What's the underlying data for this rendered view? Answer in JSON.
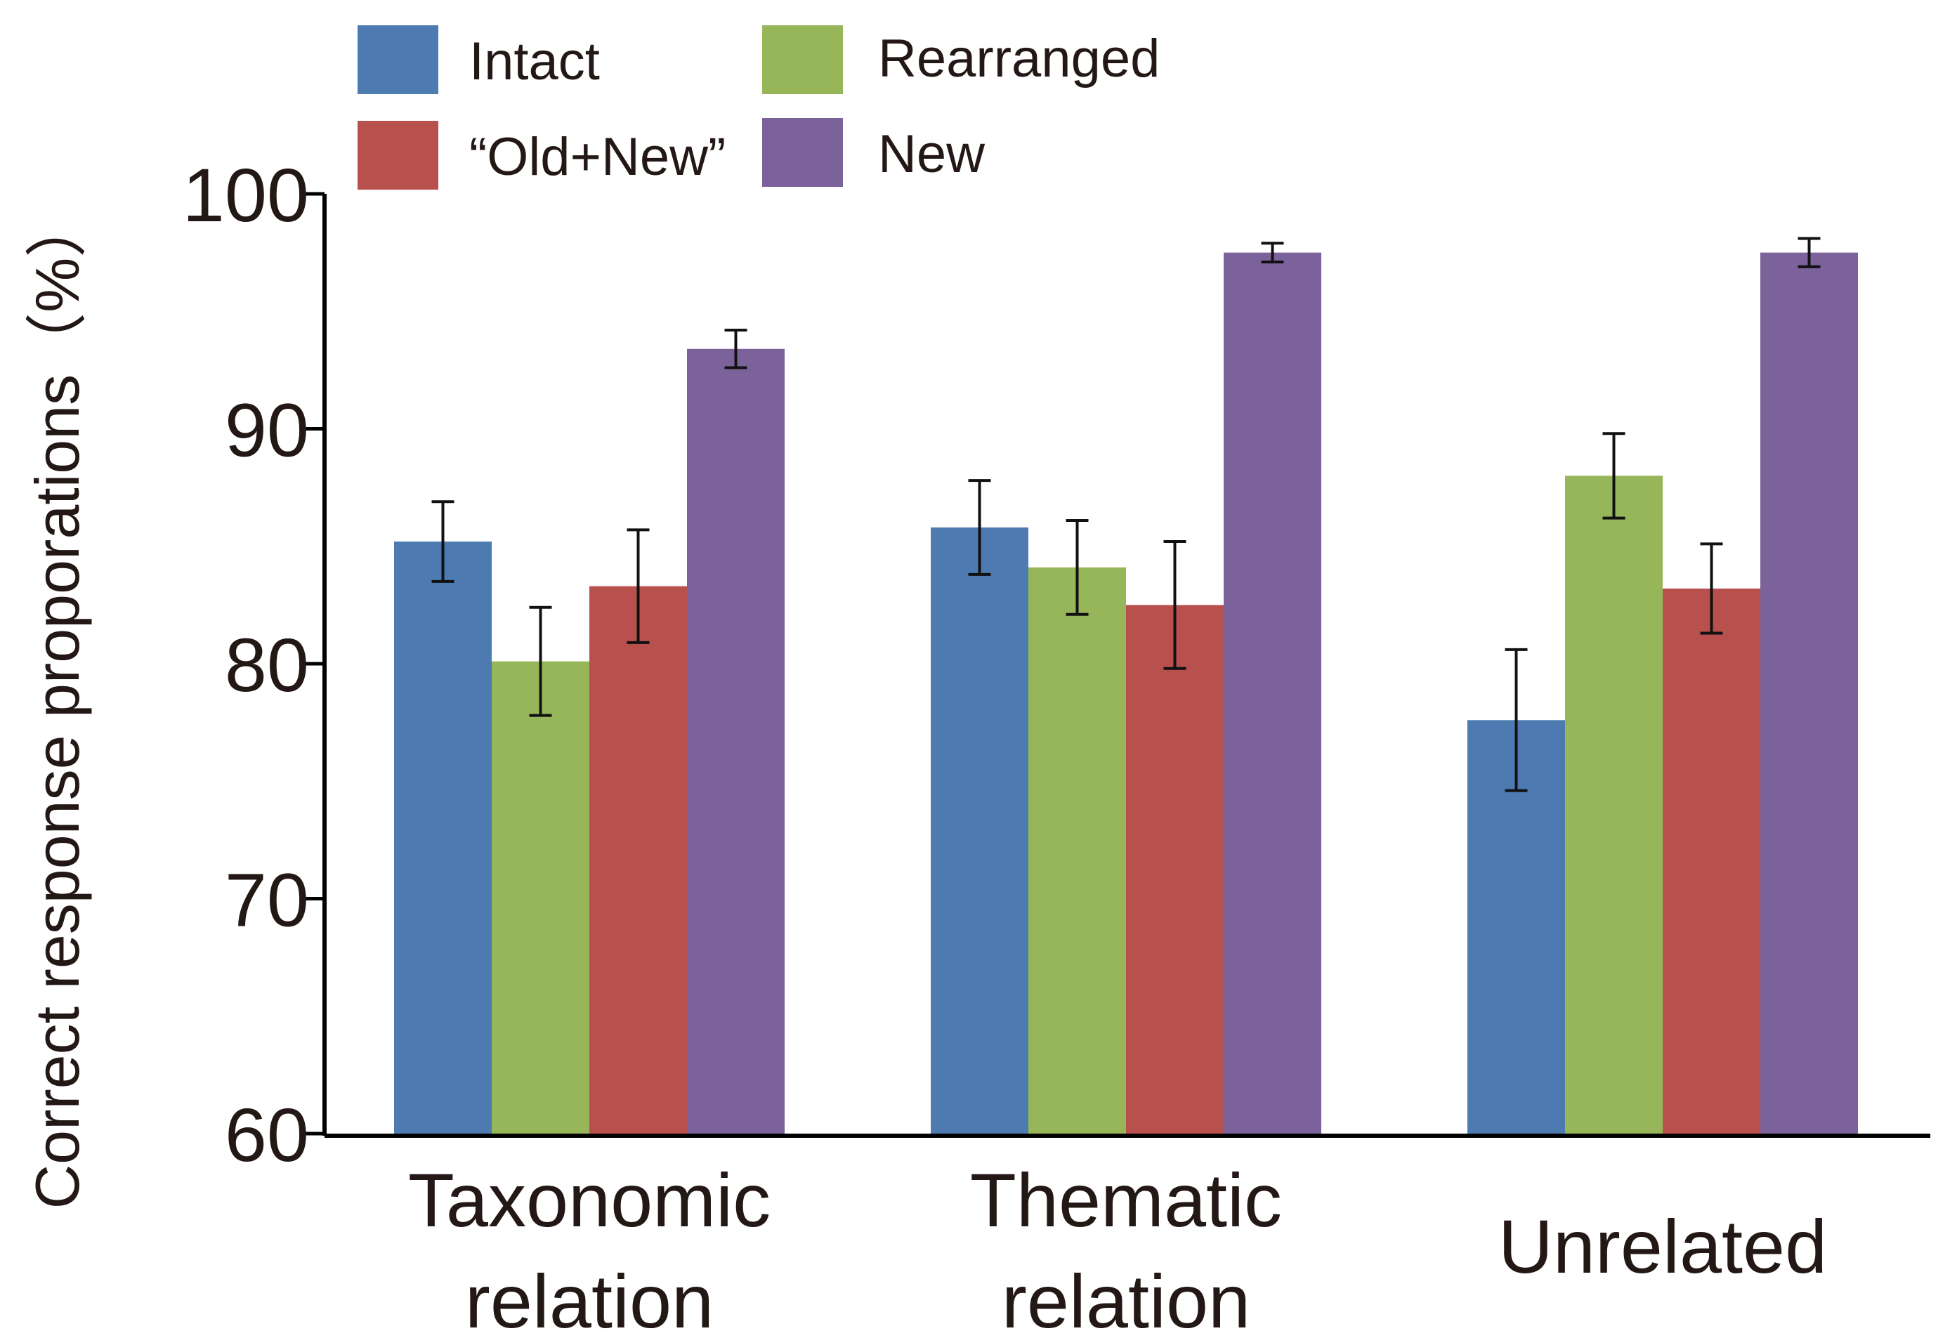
{
  "chart_data": {
    "type": "bar",
    "title": "",
    "xlabel": "",
    "ylabel": "Correct  response proporations（%）",
    "ylim": [
      60,
      100
    ],
    "yticks": [
      60,
      70,
      80,
      90,
      100
    ],
    "categories": [
      [
        "Taxonomic",
        "relation"
      ],
      [
        "Thematic",
        "relation"
      ],
      [
        "Unrelated"
      ]
    ],
    "series": [
      {
        "name": "Intact",
        "color": "#4c7ab1",
        "values": [
          85.2,
          85.8,
          77.6
        ],
        "errors": [
          1.7,
          2.0,
          3.0
        ]
      },
      {
        "name": "Rearranged",
        "color": "#97b65a",
        "values": [
          80.1,
          84.1,
          88.0
        ],
        "errors": [
          2.3,
          2.0,
          1.8
        ]
      },
      {
        "name": "“Old+New”",
        "color": "#b8504d",
        "values": [
          83.3,
          82.5,
          83.2
        ],
        "errors": [
          2.4,
          2.7,
          1.9
        ]
      },
      {
        "name": "New",
        "color": "#7c629b",
        "values": [
          93.4,
          97.5,
          97.5
        ],
        "errors": [
          0.8,
          0.4,
          0.6
        ]
      }
    ],
    "legend_position": "top",
    "grid": false
  }
}
